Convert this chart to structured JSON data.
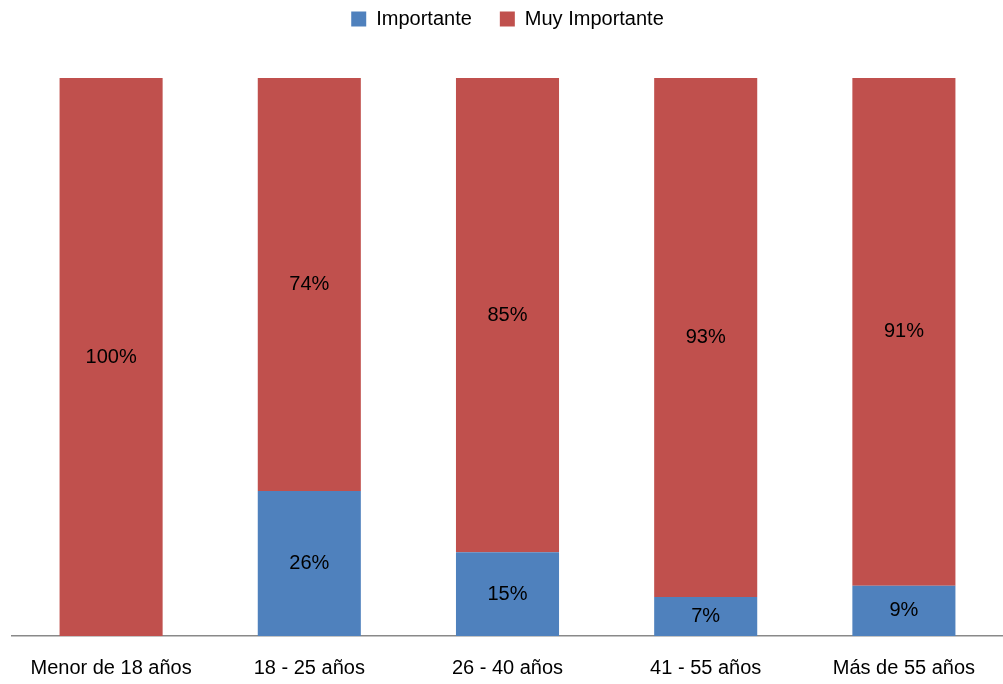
{
  "chart_data": {
    "type": "bar",
    "stacked": true,
    "legend": "top",
    "tick_labels": "x",
    "categories": [
      "Menor de 18 años",
      "18 - 25 años",
      "26 - 40 años",
      "41 - 55 años",
      "Más de 55 años"
    ],
    "series": [
      {
        "name": "Importante",
        "color": "#4f81bd",
        "values": [
          null,
          26,
          15,
          7,
          9
        ],
        "value_labels": [
          null,
          "26%",
          "15%",
          "7%",
          "9%"
        ]
      },
      {
        "name": "Muy Importante",
        "color": "#c0504d",
        "values": [
          100,
          74,
          85,
          93,
          91
        ],
        "value_labels": [
          "100%",
          "74%",
          "85%",
          "93%",
          "91%"
        ]
      }
    ]
  }
}
